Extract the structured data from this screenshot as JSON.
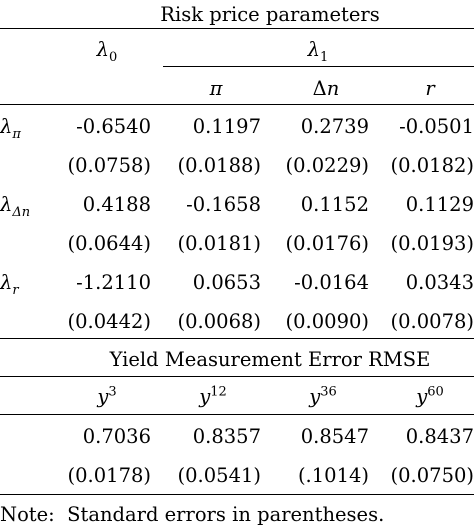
{
  "risk": {
    "title": "Risk price parameters",
    "lambda": "λ",
    "lambda0_sub": "0",
    "lambda1_sub": "1",
    "cols": [
      "π",
      "Δ",
      "r"
    ],
    "col_delta_n": "n",
    "rows": [
      {
        "label": "λ",
        "sub": "π",
        "est": [
          "-0.6540",
          "0.1197",
          "0.2739",
          "-0.0501"
        ],
        "se": [
          "(0.0758)",
          "(0.0188)",
          "(0.0229)",
          "(0.0182)"
        ]
      },
      {
        "label": "λ",
        "sub": "Δn",
        "est": [
          "0.4188",
          "-0.1658",
          "0.1152",
          "0.1129"
        ],
        "se": [
          "(0.0644)",
          "(0.0181)",
          "(0.0176)",
          "(0.0193)"
        ]
      },
      {
        "label": "λ",
        "sub": "r",
        "est": [
          "-1.2110",
          "0.0653",
          "-0.0164",
          "0.0343"
        ],
        "se": [
          "(0.0442)",
          "(0.0068)",
          "(0.0090)",
          "(0.0078)"
        ]
      }
    ]
  },
  "yield": {
    "title": "Yield Measurement Error RMSE",
    "y": "y",
    "maturities": [
      "3",
      "12",
      "36",
      "60"
    ],
    "est": [
      "0.7036",
      "0.8357",
      "0.8547",
      "0.8437"
    ],
    "se": [
      "(0.0178)",
      "(0.0541)",
      "(.1014)",
      "(0.0750)"
    ]
  },
  "note": "Note:  Standard errors in parentheses."
}
